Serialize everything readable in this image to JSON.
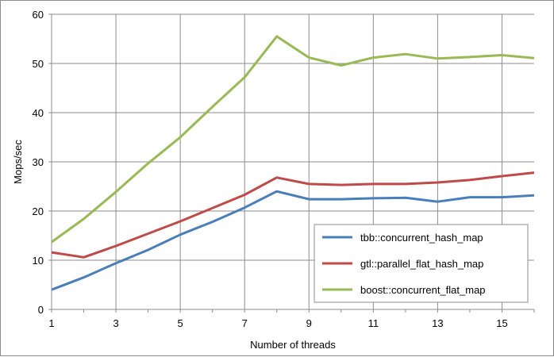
{
  "chart_data": {
    "type": "line",
    "title": "",
    "xlabel": "Number of threads",
    "ylabel": "Mops/sec",
    "xlim": [
      1,
      16
    ],
    "ylim": [
      0,
      60
    ],
    "x_ticks": [
      1,
      3,
      5,
      7,
      9,
      11,
      13,
      15
    ],
    "y_ticks": [
      0,
      10,
      20,
      30,
      40,
      50,
      60
    ],
    "grid": true,
    "legend_position": "bottom-right",
    "x": [
      1,
      2,
      3,
      4,
      5,
      6,
      7,
      8,
      9,
      10,
      11,
      12,
      13,
      14,
      15,
      16
    ],
    "series": [
      {
        "name": "tbb::concurrent_hash_map",
        "color": "#4a7ebb",
        "values": [
          4.0,
          6.5,
          9.4,
          12.1,
          15.2,
          17.8,
          20.7,
          24.0,
          22.4,
          22.4,
          22.6,
          22.7,
          21.9,
          22.8,
          22.8,
          23.2
        ]
      },
      {
        "name": "gtl::parallel_flat_hash_map",
        "color": "#be4b48",
        "values": [
          11.6,
          10.6,
          12.9,
          15.4,
          17.9,
          20.6,
          23.3,
          26.8,
          25.5,
          25.3,
          25.5,
          25.5,
          25.8,
          26.3,
          27.1,
          27.8
        ]
      },
      {
        "name": "boost::concurrent_flat_map",
        "color": "#98b954",
        "values": [
          13.7,
          18.4,
          23.9,
          29.7,
          35.0,
          41.2,
          47.2,
          55.5,
          51.2,
          49.6,
          51.2,
          51.9,
          51.0,
          51.3,
          51.7,
          51.1
        ]
      }
    ]
  }
}
